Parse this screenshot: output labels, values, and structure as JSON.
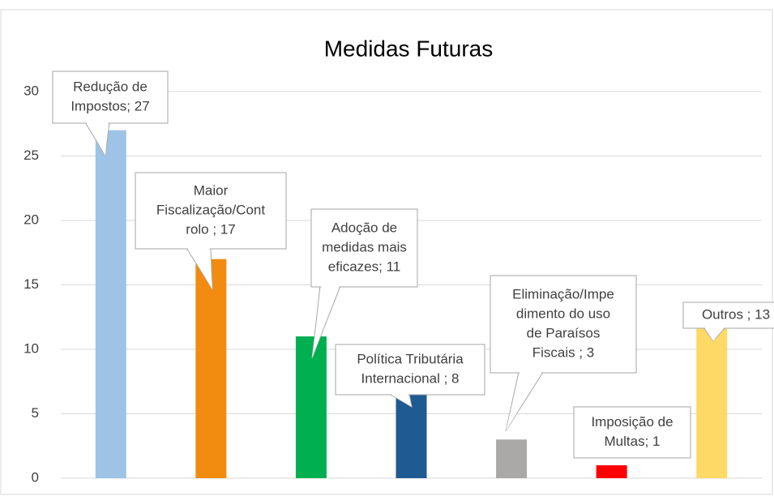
{
  "chart_data": {
    "type": "bar",
    "title": "Medidas Futuras",
    "values": [
      27,
      17,
      11,
      8,
      3,
      1,
      13
    ],
    "value_labels": [
      [
        "Redução de",
        "Impostos; 27"
      ],
      [
        "Maior",
        "Fiscalização/Cont",
        "rolo ; 17"
      ],
      [
        "Adoção de",
        "medidas mais",
        "eficazes; 11"
      ],
      [
        "Política Tributária",
        "Internacional ; 8"
      ],
      [
        "Eliminação/Impe",
        "dimento do uso",
        "de Paraísos",
        "Fiscais ; 3"
      ],
      [
        "Imposição de",
        "Multas; 1"
      ],
      [
        "Outros ; 13"
      ]
    ],
    "colors": [
      "#9dc3e6",
      "#f28c10",
      "#00b050",
      "#1f5a93",
      "#aaa9a8",
      "#ff0000",
      "#ffd966"
    ],
    "ylim": [
      0,
      30
    ],
    "yticks": [
      0,
      5,
      10,
      15,
      20,
      25,
      30
    ],
    "grid": true
  }
}
